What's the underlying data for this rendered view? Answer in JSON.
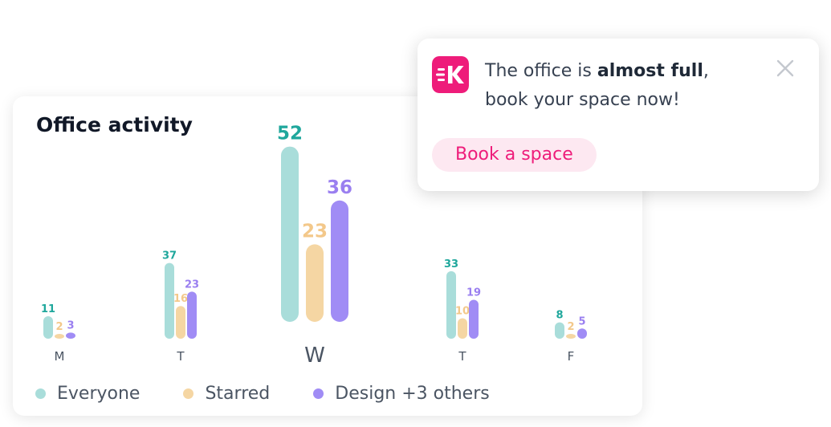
{
  "card": {
    "title": "Office activity"
  },
  "colors": {
    "everyone": "#a9ddda",
    "starred": "#f5d6a3",
    "design": "#a08cf5",
    "everyone_label": "#1fa79c",
    "starred_label": "#f3c88a",
    "design_label": "#9a7ff0",
    "brand": "#ee1c7a",
    "button_bg": "#fde8f1"
  },
  "legend": [
    {
      "label": "Everyone",
      "color_key": "everyone"
    },
    {
      "label": "Starred",
      "color_key": "starred"
    },
    {
      "label": "Design +3 others",
      "color_key": "design"
    }
  ],
  "chart_data": {
    "type": "bar",
    "title": "Office activity",
    "categories": [
      "M",
      "T",
      "W",
      "T",
      "F"
    ],
    "highlighted_category_index": 2,
    "series": [
      {
        "name": "Everyone",
        "values": [
          11,
          37,
          52,
          33,
          8
        ]
      },
      {
        "name": "Starred",
        "values": [
          2,
          16,
          23,
          10,
          2
        ]
      },
      {
        "name": "Design +3 others",
        "values": [
          3,
          23,
          36,
          19,
          5
        ]
      }
    ],
    "legend_position": "bottom-left",
    "grid": false
  },
  "toast": {
    "logo_icon": "kadence-logo-icon",
    "message_prefix": "The office is ",
    "message_bold": "almost full",
    "message_suffix": ",",
    "message_line2": "book your space now!",
    "button_label": "Book a space",
    "close_icon": "close-icon"
  }
}
